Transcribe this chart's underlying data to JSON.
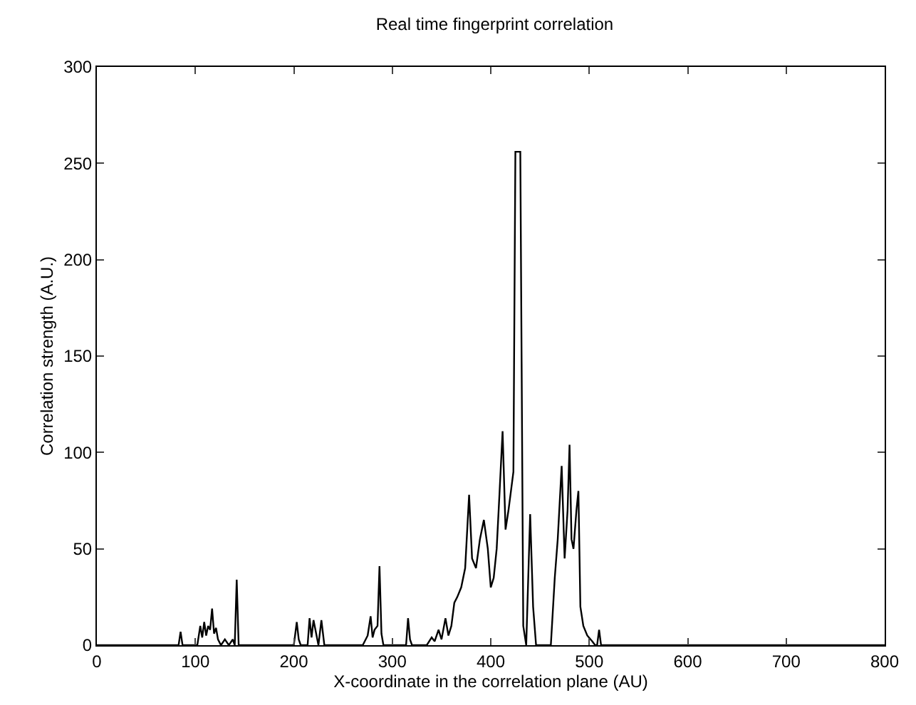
{
  "chart_data": {
    "type": "line",
    "title": "Real time fingerprint correlation",
    "xlabel": "X-coordinate in the correlation plane (AU)",
    "ylabel": "Correlation strength (A.U.)",
    "series": [
      {
        "color": "#000000",
        "x": [
          0,
          83,
          85,
          87,
          102,
          105,
          107,
          109,
          111,
          113,
          115,
          117,
          119,
          121,
          123,
          126,
          130,
          134,
          138,
          140,
          142,
          144,
          146,
          200,
          203,
          205,
          207,
          214,
          216,
          218,
          220,
          225,
          228,
          231,
          270,
          275,
          278,
          280,
          282,
          285,
          287,
          289,
          291,
          314,
          316,
          318,
          320,
          335,
          340,
          343,
          347,
          350,
          354,
          357,
          360,
          363,
          366,
          370,
          374,
          378,
          381,
          385,
          389,
          393,
          397,
          400,
          403,
          406,
          409,
          412,
          415,
          418,
          421,
          423,
          425,
          428,
          430,
          433,
          436,
          440,
          443,
          446,
          458,
          461,
          465,
          468,
          472,
          475,
          478,
          480,
          482,
          484,
          487,
          489,
          491,
          494,
          498,
          503,
          506,
          508,
          510,
          512,
          800
        ],
        "values": [
          0,
          0,
          7,
          0,
          0,
          10,
          4,
          12,
          5,
          10,
          8,
          19,
          6,
          9,
          3,
          0,
          3,
          0,
          3,
          0,
          34,
          0,
          0,
          0,
          12,
          3,
          0,
          0,
          14,
          4,
          13,
          0,
          13,
          0,
          0,
          5,
          15,
          4,
          8,
          10,
          41,
          6,
          0,
          0,
          14,
          3,
          0,
          0,
          4,
          2,
          8,
          3,
          14,
          5,
          10,
          22,
          25,
          30,
          40,
          78,
          45,
          40,
          55,
          65,
          50,
          30,
          35,
          50,
          80,
          111,
          60,
          70,
          82,
          90,
          256,
          256,
          256,
          10,
          0,
          68,
          20,
          0,
          0,
          0,
          35,
          55,
          93,
          45,
          70,
          104,
          55,
          50,
          70,
          80,
          20,
          10,
          5,
          2,
          0,
          0,
          8,
          0,
          0
        ]
      }
    ],
    "xlim": [
      0,
      800
    ],
    "ylim": [
      0,
      300
    ],
    "xticks": [
      0,
      100,
      200,
      300,
      400,
      500,
      600,
      700,
      800
    ],
    "yticks": [
      0,
      50,
      100,
      150,
      200,
      250,
      300
    ],
    "grid": false,
    "marker": "none",
    "line_style": "solid"
  }
}
